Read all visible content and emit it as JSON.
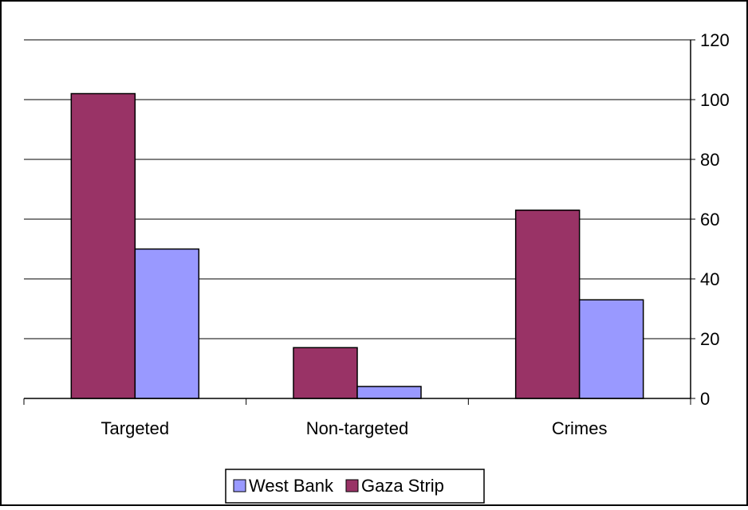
{
  "chart_data": {
    "type": "bar",
    "title": "",
    "xlabel": "",
    "ylabel": "",
    "categories": [
      "Targeted",
      "Non-targeted",
      "Crimes"
    ],
    "series": [
      {
        "name": "Gaza Strip",
        "values": [
          102,
          17,
          63
        ],
        "color": "#993366"
      },
      {
        "name": "West Bank",
        "values": [
          50,
          4,
          33
        ],
        "color": "#9999ff"
      }
    ],
    "ylim": [
      0,
      120
    ],
    "yticks": [
      "0",
      "20",
      "40",
      "60",
      "80",
      "100",
      "120"
    ],
    "y_axis_side": "right",
    "grid": true,
    "legend": {
      "position": "bottom",
      "entries": [
        {
          "label": "West Bank",
          "color": "#9999ff"
        },
        {
          "label": "Gaza Strip",
          "color": "#993366"
        }
      ]
    }
  }
}
